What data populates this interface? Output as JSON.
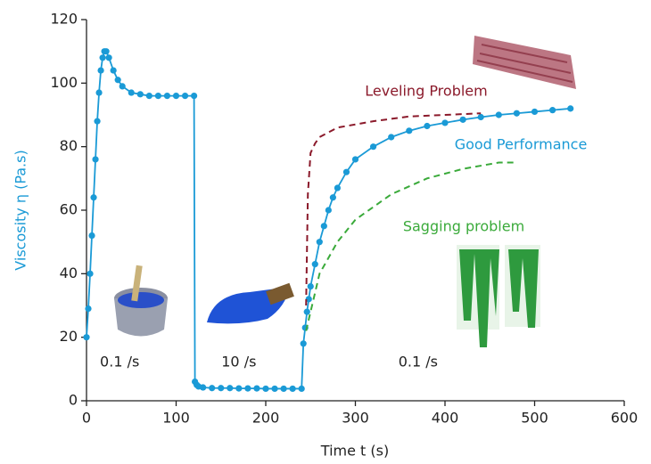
{
  "chart_data": {
    "type": "line",
    "xlabel": "Time t (s)",
    "ylabel": "Viscosity η (Pa.s)",
    "xlim": [
      0,
      600
    ],
    "xticks": [
      0,
      100,
      200,
      300,
      400,
      500,
      600
    ],
    "ylim": [
      0,
      120
    ],
    "yticks": [
      0,
      20,
      40,
      60,
      80,
      100,
      120
    ],
    "grid": false,
    "series": [
      {
        "name": "Good Performance",
        "color": "#1a9ad6",
        "dashed": false,
        "markers": true,
        "x": [
          0,
          2,
          4,
          6,
          8,
          10,
          12,
          14,
          16,
          18,
          20,
          22,
          25,
          30,
          35,
          40,
          50,
          60,
          70,
          80,
          90,
          100,
          110,
          120,
          121,
          123,
          125,
          130,
          140,
          150,
          160,
          170,
          180,
          190,
          200,
          210,
          220,
          230,
          240,
          242,
          244,
          246,
          248,
          250,
          255,
          260,
          265,
          270,
          275,
          280,
          290,
          300,
          320,
          340,
          360,
          380,
          400,
          420,
          440,
          460,
          480,
          500,
          520,
          540
        ],
        "values": [
          20,
          29,
          40,
          52,
          64,
          76,
          88,
          97,
          104,
          108,
          110,
          110,
          108,
          104,
          101,
          99,
          97,
          96.5,
          96,
          96,
          96,
          96,
          96,
          96,
          6,
          5,
          4.5,
          4.2,
          4,
          4,
          4,
          3.9,
          3.9,
          3.9,
          3.8,
          3.8,
          3.8,
          3.8,
          3.8,
          18,
          23,
          28,
          32,
          36,
          43,
          50,
          55,
          60,
          64,
          67,
          72,
          76,
          80,
          83,
          85,
          86.5,
          87.5,
          88.5,
          89.3,
          90,
          90.5,
          91,
          91.5,
          92
        ]
      },
      {
        "name": "Leveling Problem",
        "color": "#8b1a2b",
        "dashed": true,
        "markers": false,
        "x": [
          245,
          247,
          250,
          255,
          260,
          280,
          320,
          360,
          400,
          440
        ],
        "values": [
          30,
          65,
          78,
          81,
          83,
          86,
          88,
          89.5,
          90,
          90.5
        ]
      },
      {
        "name": "Sagging problem",
        "color": "#3aaa3a",
        "dashed": true,
        "markers": false,
        "x": [
          245,
          260,
          280,
          300,
          340,
          380,
          420,
          460,
          480
        ],
        "values": [
          22,
          40,
          50,
          57,
          65,
          70,
          73,
          75,
          75
        ]
      }
    ],
    "annotations": [
      {
        "text": "0.1 /s",
        "x": 37,
        "y": 12
      },
      {
        "text": "10 /s",
        "x": 170,
        "y": 12
      },
      {
        "text": "0.1 /s",
        "x": 370,
        "y": 12
      }
    ]
  }
}
